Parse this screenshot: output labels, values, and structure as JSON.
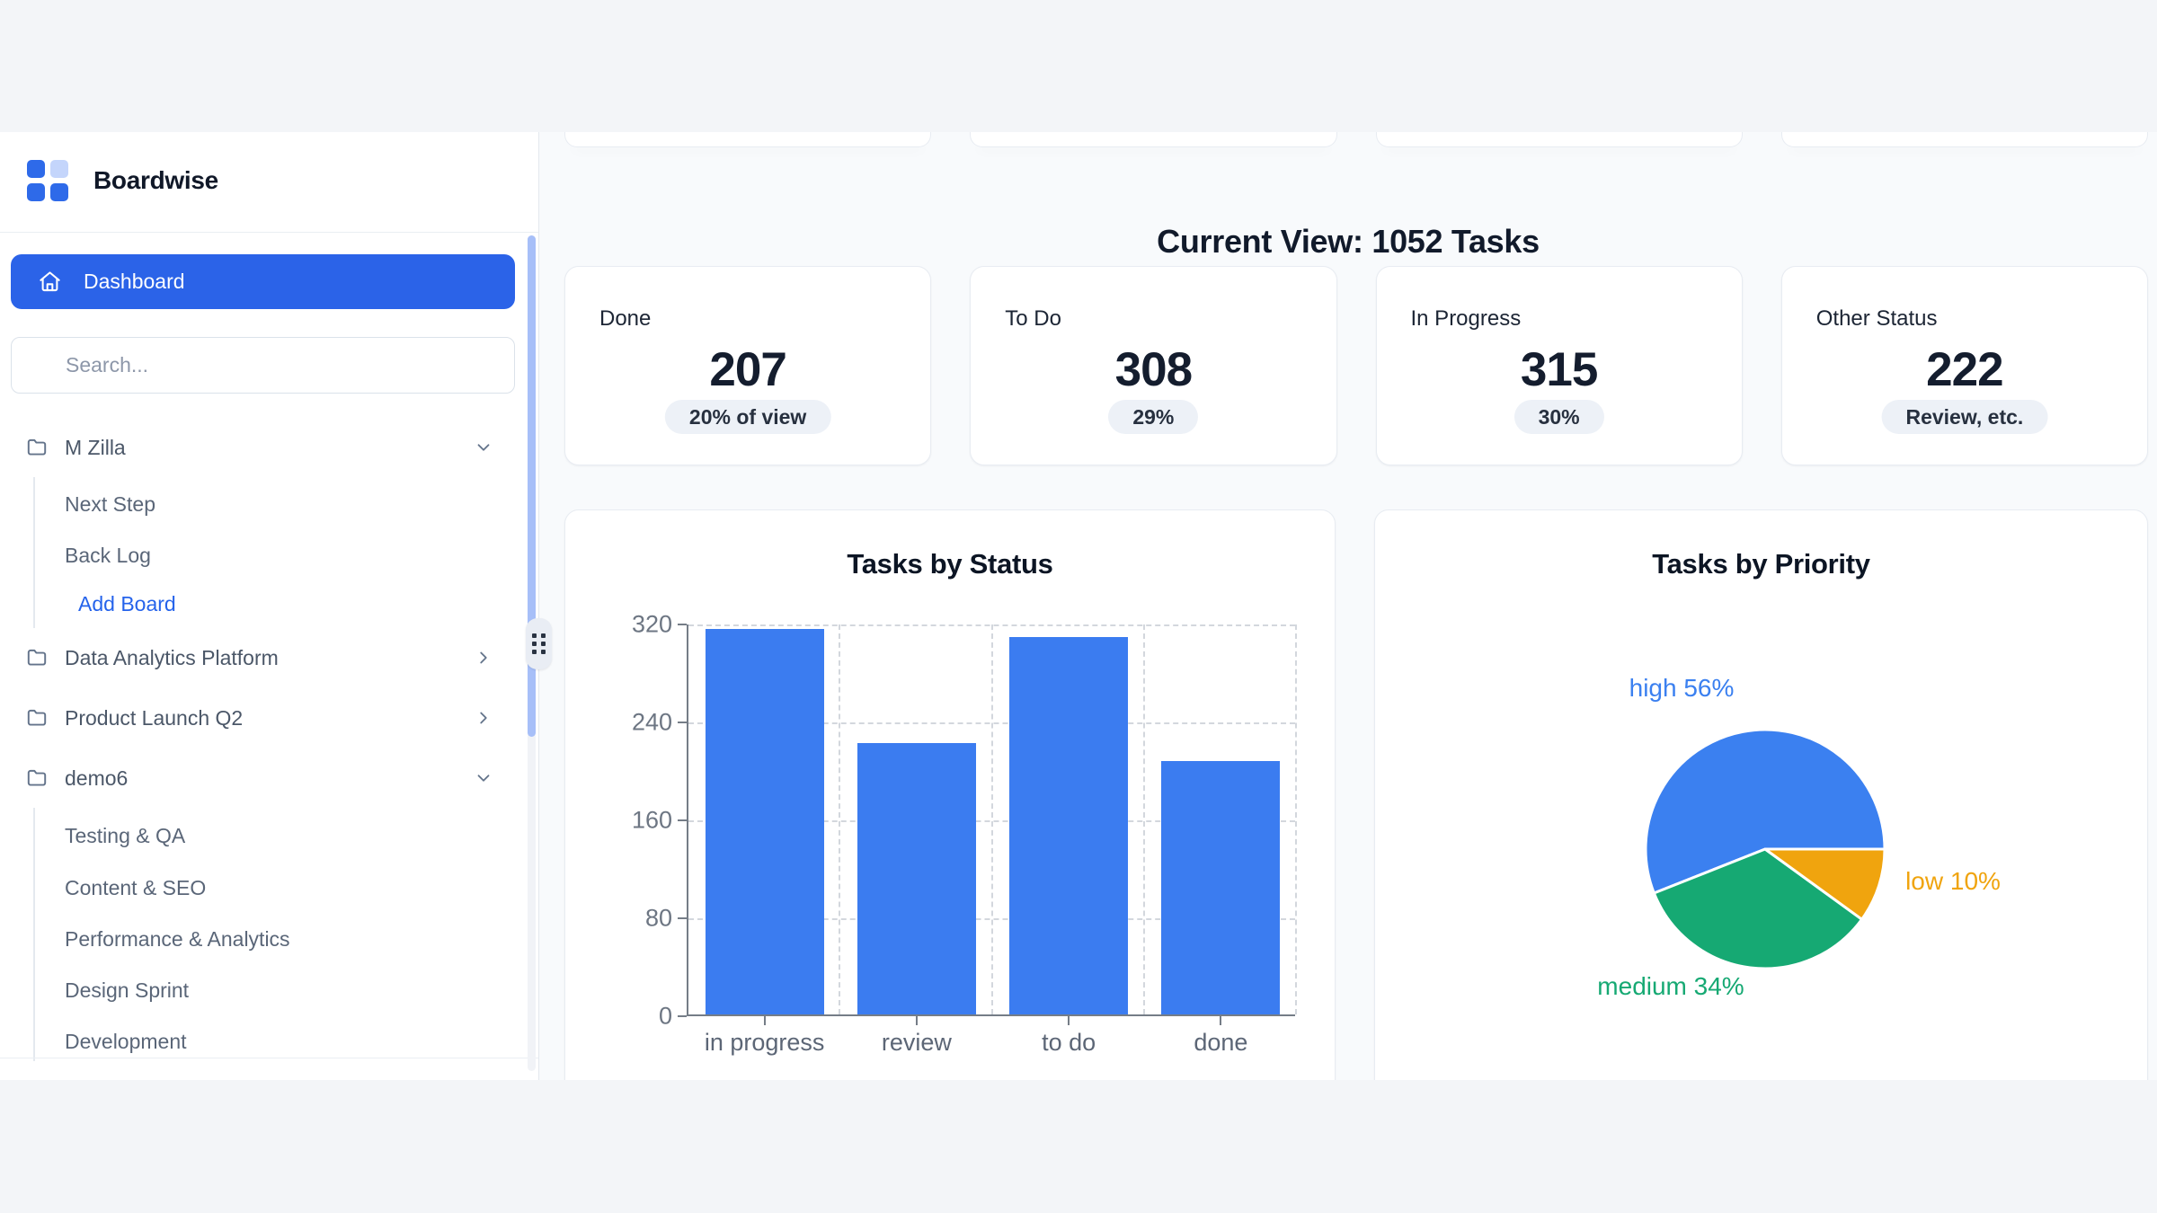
{
  "app": {
    "name": "Boardwise"
  },
  "colors": {
    "accent": "#2b63e8",
    "bar": "#3b7cf0",
    "pie_high": "#3b80f0",
    "pie_medium": "#16a973",
    "pie_low": "#f0a40e",
    "badge_bg": "#edf1f7"
  },
  "sidebar": {
    "nav": {
      "dashboard_label": "Dashboard"
    },
    "search": {
      "placeholder": "Search..."
    },
    "boards": [
      {
        "label": "M Zilla",
        "expanded": true,
        "children": [
          "Next Step",
          "Back Log"
        ],
        "action": "Add Board"
      },
      {
        "label": "Data Analytics Platform",
        "expanded": false
      },
      {
        "label": "Product Launch Q2",
        "expanded": false
      },
      {
        "label": "demo6",
        "expanded": true,
        "children": [
          "Testing & QA",
          "Content & SEO",
          "Performance & Analytics",
          "Design Sprint",
          "Development"
        ]
      }
    ]
  },
  "main": {
    "heading": "Current View: 1052 Tasks",
    "stats": [
      {
        "label": "Done",
        "value": "207",
        "badge": "20% of view"
      },
      {
        "label": "To Do",
        "value": "308",
        "badge": "29%"
      },
      {
        "label": "In Progress",
        "value": "315",
        "badge": "30%"
      },
      {
        "label": "Other Status",
        "value": "222",
        "badge": "Review, etc."
      }
    ]
  },
  "chart_data": [
    {
      "type": "bar",
      "title": "Tasks by Status",
      "categories": [
        "in progress",
        "review",
        "to do",
        "done"
      ],
      "values": [
        315,
        222,
        308,
        207
      ],
      "xlabel": "",
      "ylabel": "",
      "ylim": [
        0,
        320
      ],
      "yticks": [
        0,
        80,
        160,
        240,
        320
      ],
      "bar_color": "#3b7cf0",
      "grid": "dashed",
      "legend": "none"
    },
    {
      "type": "pie",
      "title": "Tasks by Priority",
      "slices": [
        {
          "label": "high",
          "value": 56,
          "color": "#3b80f0"
        },
        {
          "label": "medium",
          "value": 34,
          "color": "#16a973"
        },
        {
          "label": "low",
          "value": 10,
          "color": "#f0a40e"
        }
      ],
      "label_format": "{label} {value}%",
      "legend": "none"
    }
  ]
}
